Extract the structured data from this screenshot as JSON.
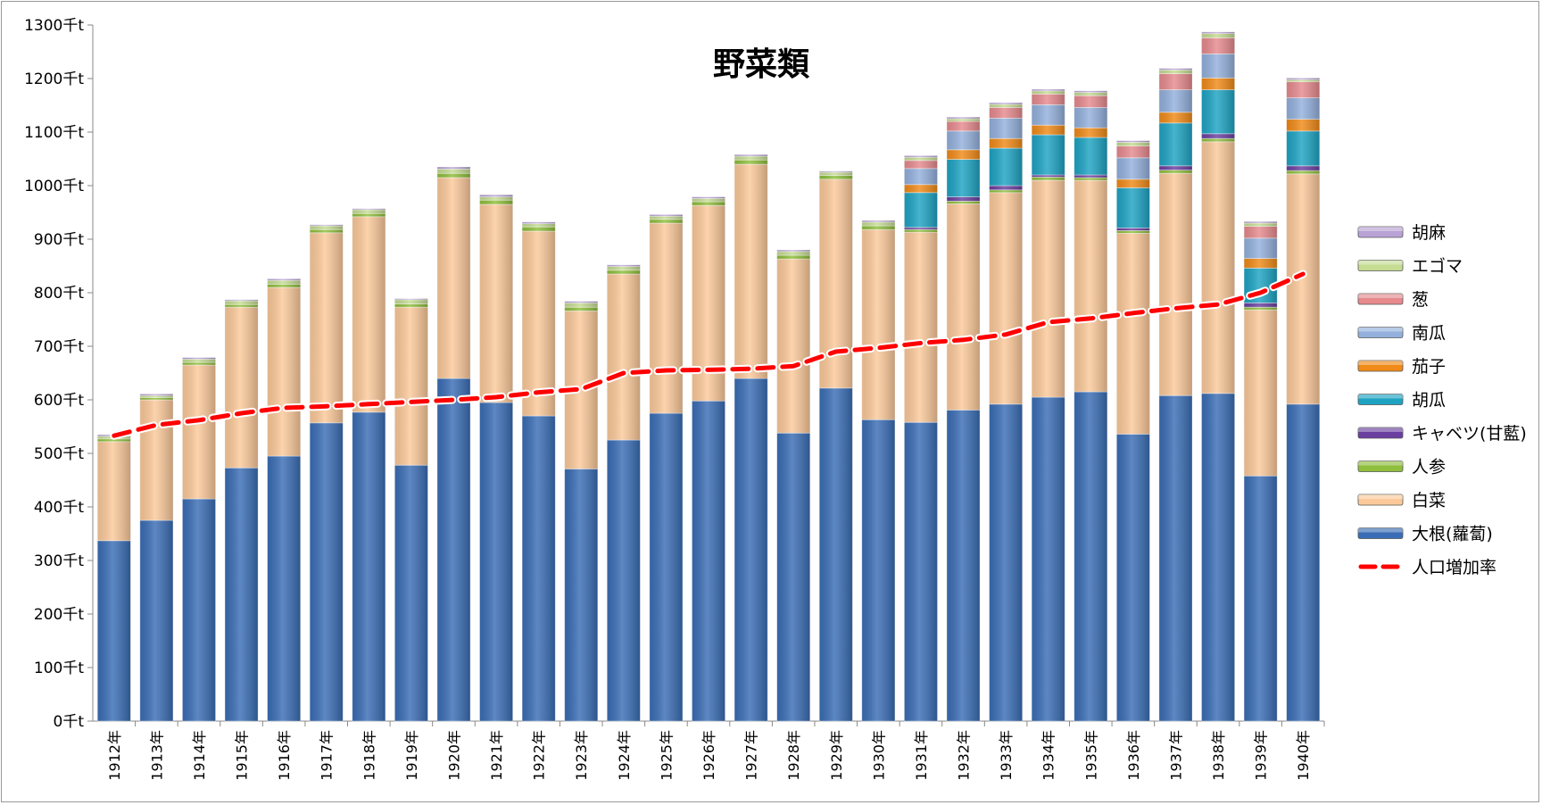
{
  "chart_data": {
    "type": "bar",
    "stacked": true,
    "title": "野菜類",
    "xlabel": "",
    "ylabel": "",
    "ylim": [
      0,
      1300
    ],
    "y_ticks": [
      "0千t",
      "100千t",
      "200千t",
      "300千t",
      "400千t",
      "500千t",
      "600千t",
      "700千t",
      "800千t",
      "900千t",
      "1000千t",
      "1100千t",
      "1200千t",
      "1300千t"
    ],
    "grid": "none",
    "legend_position": "right",
    "categories": [
      "1912年",
      "1913年",
      "1914年",
      "1915年",
      "1916年",
      "1917年",
      "1918年",
      "1919年",
      "1920年",
      "1921年",
      "1922年",
      "1923年",
      "1924年",
      "1925年",
      "1926年",
      "1927年",
      "1928年",
      "1929年",
      "1930年",
      "1931年",
      "1932年",
      "1933年",
      "1934年",
      "1935年",
      "1936年",
      "1937年",
      "1938年",
      "1939年",
      "1940年"
    ],
    "series": [
      {
        "name": "大根(蘿蔔)",
        "color": "#3a6db5",
        "values": [
          337,
          375,
          415,
          473,
          495,
          557,
          577,
          478,
          640,
          595,
          570,
          471,
          525,
          575,
          598,
          640,
          538,
          622,
          563,
          558,
          581,
          592,
          605,
          615,
          536,
          608,
          612,
          458,
          592
        ]
      },
      {
        "name": "白菜",
        "color": "#fbc99a",
        "values": [
          185,
          225,
          250,
          300,
          315,
          355,
          365,
          295,
          375,
          370,
          345,
          295,
          310,
          355,
          365,
          400,
          325,
          390,
          355,
          355,
          385,
          395,
          405,
          395,
          375,
          415,
          470,
          310,
          430
        ]
      },
      {
        "name": "人参",
        "color": "#8fbe3c",
        "values": [
          5,
          4,
          5,
          5,
          6,
          6,
          6,
          6,
          8,
          8,
          8,
          7,
          7,
          7,
          7,
          8,
          7,
          7,
          7,
          5,
          5,
          5,
          6,
          5,
          5,
          6,
          6,
          5,
          6
        ]
      },
      {
        "name": "キャベツ(甘藍)",
        "color": "#6b3fa0",
        "values": [
          0,
          0,
          0,
          0,
          0,
          0,
          0,
          0,
          0,
          0,
          0,
          0,
          0,
          0,
          0,
          0,
          0,
          0,
          0,
          4,
          8,
          8,
          4,
          5,
          5,
          8,
          9,
          8,
          9
        ]
      },
      {
        "name": "胡瓜",
        "color": "#1ea3c3",
        "values": [
          0,
          0,
          0,
          0,
          0,
          0,
          0,
          0,
          0,
          0,
          0,
          0,
          0,
          0,
          0,
          0,
          0,
          0,
          0,
          65,
          70,
          70,
          75,
          70,
          75,
          80,
          82,
          65,
          65
        ]
      },
      {
        "name": "茄子",
        "color": "#f08a18",
        "values": [
          0,
          0,
          0,
          0,
          0,
          0,
          0,
          0,
          0,
          0,
          0,
          0,
          0,
          0,
          0,
          0,
          0,
          0,
          0,
          15,
          18,
          18,
          18,
          18,
          16,
          20,
          22,
          18,
          22
        ]
      },
      {
        "name": "南瓜",
        "color": "#93b0dc",
        "values": [
          0,
          0,
          0,
          0,
          0,
          0,
          0,
          0,
          0,
          0,
          0,
          0,
          0,
          0,
          0,
          0,
          0,
          0,
          0,
          30,
          35,
          38,
          38,
          38,
          40,
          42,
          45,
          38,
          40
        ]
      },
      {
        "name": "葱",
        "color": "#e68a8e",
        "values": [
          0,
          0,
          0,
          0,
          0,
          0,
          0,
          0,
          0,
          0,
          0,
          0,
          0,
          0,
          0,
          0,
          0,
          0,
          0,
          15,
          18,
          20,
          20,
          22,
          22,
          30,
          30,
          22,
          30
        ]
      },
      {
        "name": "エゴマ",
        "color": "#c5dc92",
        "values": [
          5,
          4,
          6,
          7,
          7,
          7,
          7,
          8,
          8,
          6,
          6,
          8,
          7,
          6,
          6,
          7,
          7,
          6,
          7,
          6,
          5,
          6,
          6,
          6,
          7,
          7,
          8,
          6,
          4
        ]
      },
      {
        "name": "胡麻",
        "color": "#b8a2d6",
        "values": [
          3,
          3,
          3,
          2,
          3,
          2,
          2,
          2,
          4,
          4,
          3,
          3,
          3,
          3,
          3,
          3,
          3,
          2,
          3,
          3,
          3,
          3,
          3,
          3,
          3,
          3,
          3,
          3,
          3
        ]
      }
    ],
    "line_series": {
      "name": "人口増加率",
      "color": "#ff0000",
      "style": "dashed",
      "values": [
        533,
        553,
        562,
        575,
        585,
        588,
        592,
        596,
        600,
        605,
        614,
        620,
        650,
        655,
        656,
        658,
        663,
        690,
        697,
        706,
        712,
        722,
        745,
        752,
        762,
        771,
        778,
        800,
        835
      ]
    }
  }
}
